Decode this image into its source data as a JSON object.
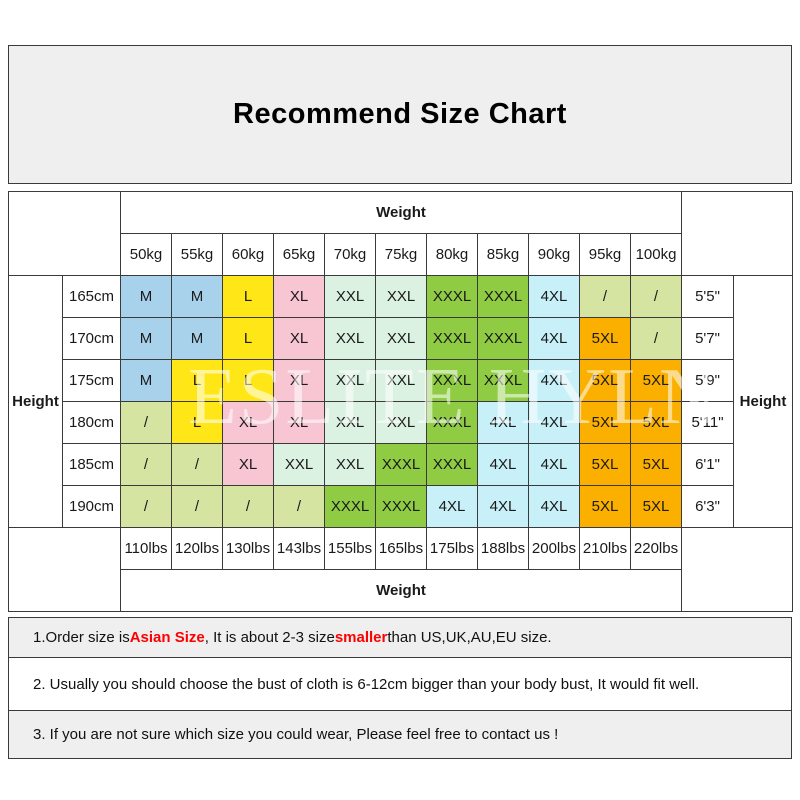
{
  "page_title": {
    "text": "Recommend Size Chart"
  },
  "watermark": {
    "text": "ESLITE HYLN"
  },
  "chart_data": {
    "type": "table",
    "title": "Recommend Size Chart",
    "weight_axis_label": "Weight",
    "height_axis_label": "Height",
    "columns_kg": [
      "50kg",
      "55kg",
      "60kg",
      "65kg",
      "70kg",
      "75kg",
      "80kg",
      "85kg",
      "90kg",
      "95kg",
      "100kg"
    ],
    "columns_lbs": [
      "110lbs",
      "120lbs",
      "130lbs",
      "143lbs",
      "155lbs",
      "165lbs",
      "175lbs",
      "188lbs",
      "200lbs",
      "210lbs",
      "220lbs"
    ],
    "rows": [
      {
        "height_cm": "165cm",
        "height_ft": "5'5\"",
        "sizes": [
          "M",
          "M",
          "L",
          "XL",
          "XXL",
          "XXL",
          "XXXL",
          "XXXL",
          "4XL",
          "/",
          "/"
        ]
      },
      {
        "height_cm": "170cm",
        "height_ft": "5'7\"",
        "sizes": [
          "M",
          "M",
          "L",
          "XL",
          "XXL",
          "XXL",
          "XXXL",
          "XXXL",
          "4XL",
          "5XL",
          "/"
        ]
      },
      {
        "height_cm": "175cm",
        "height_ft": "5'9\"",
        "sizes": [
          "M",
          "L",
          "L",
          "XL",
          "XXL",
          "XXL",
          "XXXL",
          "XXXL",
          "4XL",
          "5XL",
          "5XL"
        ]
      },
      {
        "height_cm": "180cm",
        "height_ft": "5'11\"",
        "sizes": [
          "/",
          "L",
          "XL",
          "XL",
          "XXL",
          "XXL",
          "XXXL",
          "4XL",
          "4XL",
          "5XL",
          "5XL"
        ]
      },
      {
        "height_cm": "185cm",
        "height_ft": "6'1\"",
        "sizes": [
          "/",
          "/",
          "XL",
          "XXL",
          "XXL",
          "XXXL",
          "XXXL",
          "4XL",
          "4XL",
          "5XL",
          "5XL"
        ]
      },
      {
        "height_cm": "190cm",
        "height_ft": "6'3\"",
        "sizes": [
          "/",
          "/",
          "/",
          "/",
          "XXXL",
          "XXXL",
          "4XL",
          "4XL",
          "4XL",
          "5XL",
          "5XL"
        ]
      }
    ],
    "size_colors": {
      "M": "#a8d2eb",
      "L": "#ffe617",
      "XL": "#f8c5d2",
      "XXL": "#dbf1e1",
      "XXXL": "#8fcc44",
      "4XL": "#c8f0f8",
      "5XL": "#fbb000",
      "/": "#d5e4a0"
    }
  },
  "notes": [
    {
      "background": "#efefef",
      "segments": [
        {
          "text": "1.Order size is ",
          "em": false
        },
        {
          "text": "Asian Size",
          "em": true
        },
        {
          "text": ", It is about 2-3 size ",
          "em": false
        },
        {
          "text": "smaller",
          "em": true
        },
        {
          "text": " than US,UK,AU,EU size.",
          "em": false
        }
      ]
    },
    {
      "background": "#ffffff",
      "segments": [
        {
          "text": "2. Usually you should choose the bust of cloth is 6-12cm bigger than your body bust, It would fit well.",
          "em": false
        }
      ]
    },
    {
      "background": "#efefef",
      "segments": [
        {
          "text": "3. If you are not sure which size you could wear, Please feel free to contact us !",
          "em": false
        }
      ]
    }
  ],
  "colors": {
    "accent_red": "#ff0000",
    "border": "#3a3a3a",
    "panel_gray": "#efefef"
  }
}
